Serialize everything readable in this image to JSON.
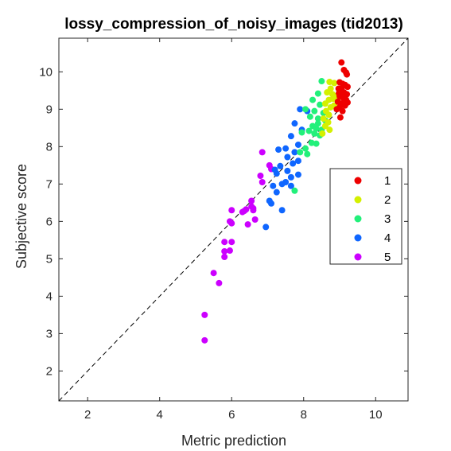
{
  "chart_data": {
    "type": "scatter",
    "title": "lossy_compression_of_noisy_images (tid2013)",
    "xlabel": "Metric prediction",
    "ylabel": "Subjective score",
    "xlim": [
      1.2,
      10.9
    ],
    "ylim": [
      1.2,
      10.9
    ],
    "xticks": [
      2,
      4,
      6,
      8,
      10
    ],
    "yticks": [
      2,
      3,
      4,
      5,
      6,
      7,
      8,
      9,
      10
    ],
    "grid": false,
    "reference_line": "diagonal dashed y = x",
    "legend_position": "right",
    "series": [
      {
        "name": "1",
        "color": "#ee0000",
        "points": [
          [
            9.05,
            10.25
          ],
          [
            9.12,
            10.05
          ],
          [
            9.18,
            9.98
          ],
          [
            9.2,
            9.93
          ],
          [
            9.0,
            9.72
          ],
          [
            9.08,
            9.68
          ],
          [
            9.15,
            9.65
          ],
          [
            9.22,
            9.6
          ],
          [
            8.97,
            9.55
          ],
          [
            9.05,
            9.5
          ],
          [
            9.12,
            9.45
          ],
          [
            9.2,
            9.4
          ],
          [
            9.0,
            9.35
          ],
          [
            9.1,
            9.3
          ],
          [
            9.18,
            9.25
          ],
          [
            8.95,
            9.2
          ],
          [
            9.05,
            9.15
          ],
          [
            9.15,
            9.1
          ],
          [
            9.0,
            9.05
          ],
          [
            8.92,
            9.0
          ],
          [
            9.08,
            8.95
          ],
          [
            9.1,
            9.62
          ],
          [
            8.98,
            9.43
          ],
          [
            9.22,
            9.18
          ],
          [
            9.02,
            8.78
          ]
        ]
      },
      {
        "name": "2",
        "color": "#d4f000",
        "points": [
          [
            8.72,
            9.73
          ],
          [
            8.85,
            9.7
          ],
          [
            8.75,
            9.55
          ],
          [
            8.65,
            9.45
          ],
          [
            8.8,
            9.4
          ],
          [
            8.9,
            9.35
          ],
          [
            8.7,
            9.25
          ],
          [
            8.6,
            9.15
          ],
          [
            8.85,
            9.1
          ],
          [
            8.75,
            9.05
          ],
          [
            8.62,
            8.95
          ],
          [
            8.7,
            8.85
          ],
          [
            8.55,
            8.75
          ],
          [
            8.68,
            8.65
          ],
          [
            8.6,
            8.55
          ],
          [
            8.72,
            8.45
          ],
          [
            8.52,
            8.35
          ],
          [
            8.82,
            9.28
          ],
          [
            8.95,
            9.3
          ]
        ]
      },
      {
        "name": "3",
        "color": "#22f07a",
        "points": [
          [
            8.5,
            9.75
          ],
          [
            8.4,
            9.42
          ],
          [
            8.25,
            9.25
          ],
          [
            8.45,
            9.12
          ],
          [
            8.05,
            9.0
          ],
          [
            8.3,
            8.95
          ],
          [
            8.55,
            8.9
          ],
          [
            8.18,
            8.8
          ],
          [
            8.4,
            8.75
          ],
          [
            8.6,
            8.7
          ],
          [
            8.25,
            8.55
          ],
          [
            8.35,
            8.48
          ],
          [
            8.5,
            8.45
          ],
          [
            8.15,
            8.42
          ],
          [
            8.3,
            8.35
          ],
          [
            7.95,
            8.38
          ],
          [
            8.45,
            8.3
          ],
          [
            8.22,
            8.1
          ],
          [
            8.35,
            8.08
          ],
          [
            8.05,
            7.95
          ],
          [
            7.9,
            7.85
          ],
          [
            8.1,
            7.8
          ],
          [
            7.75,
            6.82
          ],
          [
            8.4,
            8.62
          ]
        ]
      },
      {
        "name": "4",
        "color": "#0f66ff",
        "points": [
          [
            7.9,
            9.0
          ],
          [
            8.1,
            8.95
          ],
          [
            7.75,
            8.62
          ],
          [
            7.95,
            8.45
          ],
          [
            7.65,
            8.28
          ],
          [
            7.85,
            8.05
          ],
          [
            7.5,
            7.95
          ],
          [
            7.3,
            7.92
          ],
          [
            7.75,
            7.85
          ],
          [
            7.55,
            7.72
          ],
          [
            7.85,
            7.62
          ],
          [
            7.7,
            7.55
          ],
          [
            7.35,
            7.48
          ],
          [
            7.55,
            7.35
          ],
          [
            7.25,
            7.28
          ],
          [
            7.85,
            7.25
          ],
          [
            7.65,
            7.18
          ],
          [
            7.5,
            7.05
          ],
          [
            7.4,
            7.0
          ],
          [
            7.65,
            6.95
          ],
          [
            7.15,
            6.95
          ],
          [
            7.25,
            6.78
          ],
          [
            7.05,
            6.55
          ],
          [
            7.1,
            6.48
          ],
          [
            7.4,
            6.3
          ],
          [
            6.95,
            5.85
          ],
          [
            7.2,
            7.38
          ]
        ]
      },
      {
        "name": "5",
        "color": "#cc00ff",
        "points": [
          [
            6.85,
            7.85
          ],
          [
            7.05,
            7.5
          ],
          [
            7.1,
            7.4
          ],
          [
            6.8,
            7.22
          ],
          [
            6.85,
            7.05
          ],
          [
            6.55,
            6.55
          ],
          [
            6.55,
            6.4
          ],
          [
            6.6,
            6.35
          ],
          [
            6.4,
            6.32
          ],
          [
            6.6,
            6.3
          ],
          [
            6.35,
            6.28
          ],
          [
            6.0,
            6.3
          ],
          [
            6.3,
            6.25
          ],
          [
            6.65,
            6.05
          ],
          [
            5.95,
            6.0
          ],
          [
            6.0,
            5.95
          ],
          [
            6.45,
            5.92
          ],
          [
            6.0,
            5.45
          ],
          [
            5.8,
            5.45
          ],
          [
            5.95,
            5.22
          ],
          [
            5.8,
            5.2
          ],
          [
            5.8,
            5.05
          ],
          [
            5.5,
            4.62
          ],
          [
            5.65,
            4.35
          ],
          [
            5.25,
            3.5
          ],
          [
            5.25,
            2.82
          ]
        ]
      }
    ]
  }
}
